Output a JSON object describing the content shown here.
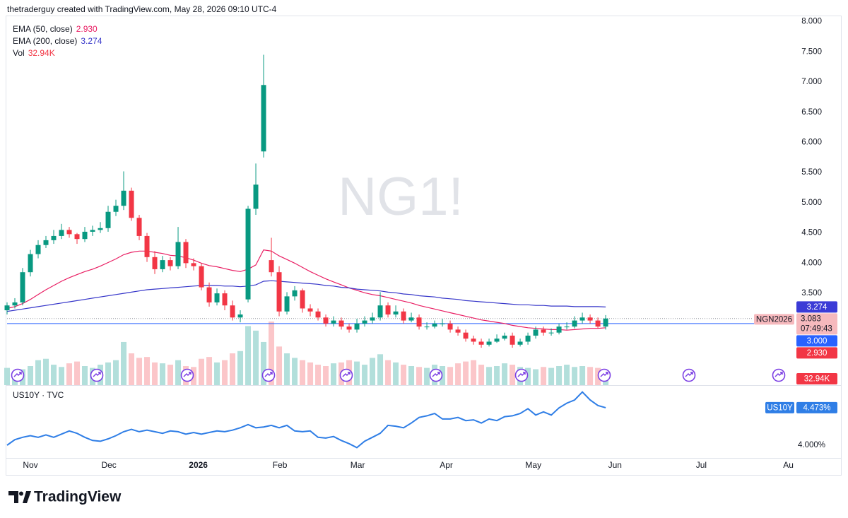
{
  "header": {
    "text": "thetraderguy created with TradingView.com, May 28, 2026 09:10 UTC-4"
  },
  "footer": {
    "brand": "TradingView"
  },
  "chart_data": [
    {
      "type": "candlestick",
      "watermark": "NG1!",
      "xlim": [
        0,
        100.9
      ],
      "xticks": [
        {
          "value": 3,
          "label": "Nov"
        },
        {
          "value": 13.1,
          "label": "Dec"
        },
        {
          "value": 24.6,
          "label": "2026"
        },
        {
          "value": 35.1,
          "label": "Feb"
        },
        {
          "value": 45.1,
          "label": "Mar"
        },
        {
          "value": 56.5,
          "label": "Apr"
        },
        {
          "value": 67.7,
          "label": "May"
        },
        {
          "value": 78.2,
          "label": "Jun"
        },
        {
          "value": 89.3,
          "label": "Jul"
        },
        {
          "value": 100.5,
          "label": "Au"
        }
      ],
      "ylim": [
        1.98,
        8.1
      ],
      "yticks": [
        {
          "value": 3.5,
          "label": "3.500"
        },
        {
          "value": 4,
          "label": "4.000"
        },
        {
          "value": 4.5,
          "label": "4.500"
        },
        {
          "value": 5,
          "label": "5.000"
        },
        {
          "value": 5.5,
          "label": "5.500"
        },
        {
          "value": 6,
          "label": "6.000"
        },
        {
          "value": 6.5,
          "label": "6.500"
        },
        {
          "value": 7,
          "label": "7.000"
        },
        {
          "value": 7.5,
          "label": "7.500"
        },
        {
          "value": 8,
          "label": "8.000"
        }
      ],
      "grid": false,
      "up_color": "#089981",
      "down_color": "#f23645",
      "volume_up_color": "#b2dfdb",
      "volume_down_color": "#fbc6c9",
      "open": [
        3.22,
        3.3,
        3.35,
        3.85,
        4.15,
        4.3,
        4.38,
        4.45,
        4.55,
        4.48,
        4.4,
        4.52,
        4.55,
        4.58,
        4.85,
        4.95,
        5.2,
        4.75,
        4.45,
        4.1,
        3.9,
        4.05,
        3.95,
        4.35,
        4.0,
        3.95,
        3.6,
        3.35,
        3.5,
        3.3,
        3.1,
        3.4,
        4.9,
        5.85,
        4.05,
        3.85,
        3.2,
        3.45,
        3.55,
        3.25,
        3.2,
        3.1,
        3.0,
        3.05,
        2.95,
        2.9,
        3.0,
        3.05,
        3.1,
        3.3,
        3.15,
        3.2,
        3.05,
        3.1,
        2.95,
        2.95,
        3.0,
        3.0,
        2.9,
        2.85,
        2.75,
        2.7,
        2.65,
        2.7,
        2.75,
        2.8,
        2.65,
        2.7,
        2.8,
        2.9,
        2.85,
        2.85,
        2.95,
        2.95,
        3.05,
        3.1,
        3.05,
        2.95
      ],
      "high": [
        3.35,
        3.42,
        3.92,
        4.22,
        4.38,
        4.45,
        4.55,
        4.65,
        4.6,
        4.5,
        4.6,
        4.62,
        4.68,
        4.95,
        5.05,
        5.52,
        5.25,
        4.8,
        4.5,
        4.2,
        4.12,
        4.1,
        4.6,
        4.4,
        4.08,
        4.0,
        3.68,
        3.58,
        3.55,
        3.38,
        3.22,
        4.95,
        5.65,
        7.45,
        4.42,
        3.95,
        3.52,
        3.62,
        3.58,
        3.32,
        3.25,
        3.15,
        3.12,
        3.1,
        3.0,
        3.08,
        3.12,
        3.18,
        3.52,
        3.35,
        3.3,
        3.25,
        3.18,
        3.15,
        3.02,
        3.05,
        3.08,
        3.05,
        2.95,
        2.9,
        2.8,
        2.75,
        2.75,
        2.82,
        2.85,
        2.85,
        2.75,
        2.85,
        2.95,
        2.95,
        2.92,
        3.0,
        3.02,
        3.12,
        3.18,
        3.15,
        3.1,
        3.14
      ],
      "low": [
        3.15,
        3.25,
        3.3,
        3.78,
        4.08,
        4.25,
        4.32,
        4.4,
        4.42,
        4.32,
        4.35,
        4.45,
        4.5,
        4.52,
        4.78,
        4.88,
        4.7,
        4.38,
        4.02,
        3.82,
        3.85,
        3.88,
        3.9,
        3.92,
        3.88,
        3.55,
        3.28,
        3.3,
        3.22,
        3.05,
        3.02,
        3.35,
        4.8,
        5.75,
        3.78,
        3.12,
        3.15,
        3.38,
        3.18,
        3.12,
        3.05,
        2.95,
        2.95,
        2.9,
        2.85,
        2.85,
        2.95,
        3.0,
        3.05,
        3.1,
        3.1,
        3.0,
        3.02,
        2.9,
        2.9,
        2.92,
        2.95,
        2.85,
        2.8,
        2.7,
        2.65,
        2.6,
        2.62,
        2.68,
        2.72,
        2.6,
        2.62,
        2.65,
        2.75,
        2.8,
        2.8,
        2.82,
        2.9,
        2.92,
        3.0,
        3.0,
        2.92,
        2.9
      ],
      "close": [
        3.3,
        3.35,
        3.85,
        4.15,
        4.3,
        4.38,
        4.45,
        4.55,
        4.48,
        4.4,
        4.52,
        4.55,
        4.58,
        4.85,
        4.95,
        5.2,
        4.75,
        4.45,
        4.1,
        3.9,
        4.05,
        3.95,
        4.35,
        4.0,
        3.95,
        3.6,
        3.35,
        3.5,
        3.3,
        3.1,
        3.15,
        4.9,
        5.3,
        6.95,
        3.85,
        3.2,
        3.45,
        3.55,
        3.25,
        3.2,
        3.1,
        3.0,
        3.05,
        2.95,
        2.9,
        3.0,
        3.05,
        3.1,
        3.3,
        3.15,
        3.2,
        3.05,
        3.1,
        2.95,
        2.95,
        3.0,
        3.0,
        2.9,
        2.85,
        2.75,
        2.7,
        2.65,
        2.7,
        2.75,
        2.8,
        2.65,
        2.7,
        2.8,
        2.9,
        2.85,
        2.85,
        2.95,
        2.95,
        3.05,
        3.1,
        3.05,
        2.95,
        3.083
      ],
      "volume": [
        38,
        30,
        35,
        42,
        55,
        58,
        45,
        40,
        48,
        52,
        42,
        38,
        45,
        50,
        55,
        95,
        70,
        60,
        62,
        50,
        48,
        45,
        55,
        42,
        40,
        58,
        62,
        50,
        55,
        70,
        75,
        130,
        120,
        95,
        140,
        85,
        70,
        60,
        55,
        50,
        45,
        42,
        48,
        50,
        55,
        52,
        45,
        60,
        68,
        55,
        50,
        45,
        42,
        40,
        38,
        45,
        42,
        40,
        48,
        52,
        55,
        45,
        40,
        42,
        48,
        45,
        40,
        38,
        35,
        40,
        38,
        42,
        45,
        40,
        42,
        40,
        38,
        32.94
      ],
      "volume_lim": [
        0,
        210
      ],
      "volume_legend": {
        "name": "Vol",
        "last_label": "32.94K"
      },
      "series": [
        {
          "name": "EMA (50, close)",
          "color": "#e91e63",
          "last_label": "2.930",
          "values": [
            3.25,
            3.28,
            3.33,
            3.4,
            3.48,
            3.56,
            3.63,
            3.7,
            3.76,
            3.81,
            3.86,
            3.9,
            3.95,
            4.01,
            4.07,
            4.14,
            4.18,
            4.2,
            4.2,
            4.18,
            4.16,
            4.13,
            4.12,
            4.09,
            4.05,
            4.0,
            3.96,
            3.94,
            3.91,
            3.88,
            3.86,
            3.9,
            3.97,
            4.22,
            4.2,
            4.12,
            4.06,
            4.0,
            3.93,
            3.86,
            3.8,
            3.74,
            3.69,
            3.64,
            3.59,
            3.55,
            3.51,
            3.48,
            3.46,
            3.43,
            3.4,
            3.37,
            3.34,
            3.3,
            3.27,
            3.24,
            3.21,
            3.18,
            3.15,
            3.12,
            3.09,
            3.06,
            3.04,
            3.02,
            3.0,
            2.97,
            2.95,
            2.93,
            2.92,
            2.91,
            2.9,
            2.9,
            2.89,
            2.9,
            2.91,
            2.92,
            2.92,
            2.93
          ]
        },
        {
          "name": "EMA (200, close)",
          "color": "#3535c9",
          "last_label": "3.274",
          "values": [
            3.2,
            3.22,
            3.24,
            3.26,
            3.28,
            3.3,
            3.32,
            3.34,
            3.36,
            3.38,
            3.4,
            3.42,
            3.44,
            3.46,
            3.48,
            3.5,
            3.52,
            3.54,
            3.56,
            3.57,
            3.58,
            3.59,
            3.6,
            3.61,
            3.62,
            3.63,
            3.63,
            3.63,
            3.62,
            3.62,
            3.61,
            3.62,
            3.64,
            3.7,
            3.71,
            3.7,
            3.69,
            3.68,
            3.67,
            3.66,
            3.65,
            3.63,
            3.62,
            3.6,
            3.59,
            3.57,
            3.56,
            3.55,
            3.54,
            3.52,
            3.51,
            3.49,
            3.48,
            3.46,
            3.45,
            3.44,
            3.42,
            3.41,
            3.4,
            3.38,
            3.37,
            3.36,
            3.35,
            3.34,
            3.33,
            3.32,
            3.31,
            3.31,
            3.3,
            3.3,
            3.29,
            3.29,
            3.29,
            3.28,
            3.28,
            3.28,
            3.28,
            3.274
          ]
        }
      ],
      "hline": {
        "value": 3,
        "label": "3.000",
        "color": "#2962ff"
      },
      "last_badge": {
        "symbol": "NGN2026",
        "price_label": "3.083",
        "countdown": "07:49:43"
      }
    },
    {
      "type": "line",
      "title": "US10Y · TVC",
      "color": "#2f7ee6",
      "ylim": [
        3.84,
        4.73
      ],
      "yticks": [
        {
          "value": 4,
          "label": "4.000%"
        }
      ],
      "values": [
        4.0,
        4.07,
        4.1,
        4.12,
        4.1,
        4.13,
        4.1,
        4.14,
        4.18,
        4.15,
        4.1,
        4.06,
        4.05,
        4.08,
        4.12,
        4.17,
        4.2,
        4.17,
        4.19,
        4.17,
        4.15,
        4.18,
        4.17,
        4.14,
        4.16,
        4.14,
        4.16,
        4.18,
        4.17,
        4.19,
        4.22,
        4.26,
        4.22,
        4.23,
        4.25,
        4.22,
        4.25,
        4.18,
        4.17,
        4.18,
        4.1,
        4.09,
        4.11,
        4.06,
        4.02,
        3.97,
        4.05,
        4.1,
        4.15,
        4.25,
        4.24,
        4.22,
        4.28,
        4.35,
        4.37,
        4.4,
        4.33,
        4.33,
        4.35,
        4.31,
        4.32,
        4.28,
        4.33,
        4.31,
        4.36,
        4.37,
        4.4,
        4.46,
        4.38,
        4.42,
        4.38,
        4.47,
        4.53,
        4.57,
        4.67,
        4.57,
        4.5,
        4.473
      ],
      "badge": {
        "symbol": "US10Y",
        "label": "4.473%"
      }
    }
  ]
}
